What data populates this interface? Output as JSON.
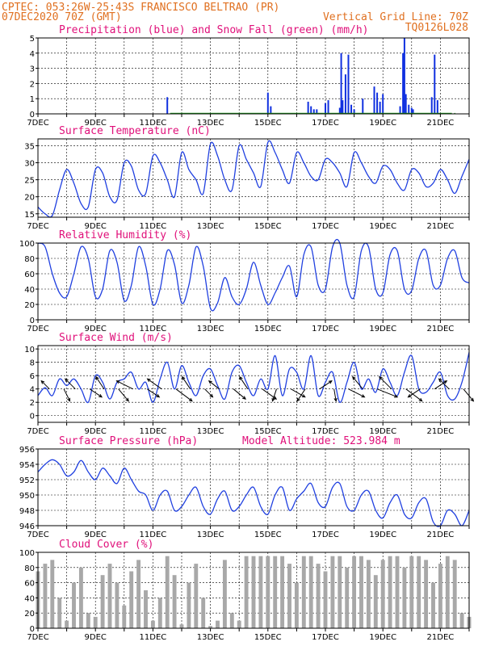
{
  "header": {
    "line1_left": "CPTEC:  053:26W-25:43S  FRANCISCO BELTRAO (PR)",
    "line2_left": "07DEC2020 70Z (GMT)",
    "line2_right": "Vertical Grid Line: 70Z",
    "line3_right": "TQ0126L028"
  },
  "colors": {
    "header": "#e07020",
    "panel_title": "#e0107a",
    "precip": "#1030e0",
    "snow": "#20a020",
    "line": "#2040e0",
    "arrow": "#000000",
    "cloud": "#a8a8a8"
  },
  "x_axis": {
    "start_day": 7,
    "end_day": 22,
    "tick_labels": [
      "7DEC",
      "9DEC",
      "11DEC",
      "13DEC",
      "15DEC",
      "17DEC",
      "19DEC",
      "21DEC"
    ]
  },
  "chart_data": [
    {
      "id": "precip",
      "type": "bar",
      "title": "Precipitation (blue) and Snow Fall (green) (mm/h)",
      "ylim": [
        0,
        5
      ],
      "yticks": [
        0,
        1,
        2,
        3,
        4,
        5
      ],
      "series": [
        {
          "name": "Precipitation",
          "x": [
            11.5,
            15.0,
            15.1,
            16.4,
            16.5,
            16.6,
            16.7,
            17.0,
            17.1,
            17.5,
            17.55,
            17.6,
            17.7,
            17.8,
            17.9,
            18.0,
            18.3,
            18.7,
            18.8,
            18.9,
            19.0,
            19.6,
            19.7,
            19.75,
            19.8,
            19.9,
            20.0,
            20.05,
            20.7,
            20.8,
            20.9
          ],
          "values": [
            1.1,
            1.4,
            0.5,
            0.8,
            0.5,
            0.3,
            0.3,
            0.7,
            0.9,
            0.4,
            4.0,
            0.9,
            2.6,
            3.9,
            0.6,
            0.3,
            1.0,
            1.8,
            1.4,
            0.8,
            1.3,
            0.5,
            4.0,
            5.0,
            1.3,
            0.6,
            0.4,
            0.3,
            1.1,
            3.9,
            0.9
          ]
        }
      ],
      "snow_series": {
        "name": "Snow Fall",
        "x": [
          12.0,
          14.0,
          16.0,
          18.0,
          20.0,
          21.5
        ],
        "values": [
          0,
          0,
          0,
          0,
          0,
          0
        ]
      }
    },
    {
      "id": "temperature",
      "type": "line",
      "title": "Surface Temperature (nC)",
      "ylim": [
        14,
        37
      ],
      "yticks": [
        15,
        20,
        25,
        30,
        35
      ],
      "x": [
        7.0,
        7.25,
        7.5,
        7.75,
        8.0,
        8.25,
        8.5,
        8.75,
        9.0,
        9.25,
        9.5,
        9.75,
        10.0,
        10.25,
        10.5,
        10.75,
        11.0,
        11.25,
        11.5,
        11.75,
        12.0,
        12.25,
        12.5,
        12.75,
        13.0,
        13.25,
        13.5,
        13.75,
        14.0,
        14.25,
        14.5,
        14.75,
        15.0,
        15.25,
        15.5,
        15.75,
        16.0,
        16.25,
        16.5,
        16.75,
        17.0,
        17.25,
        17.5,
        17.75,
        18.0,
        18.25,
        18.5,
        18.75,
        19.0,
        19.25,
        19.5,
        19.75,
        20.0,
        20.25,
        20.5,
        20.75,
        21.0,
        21.25,
        21.5,
        21.75,
        22.0
      ],
      "values": [
        17,
        15,
        14.5,
        22,
        28,
        24,
        18,
        17,
        28,
        27,
        20,
        19,
        30,
        29,
        22,
        21,
        32,
        30,
        25,
        20,
        33,
        28,
        25,
        21,
        35.5,
        32,
        25,
        22,
        35,
        31,
        27,
        23,
        36,
        33,
        28,
        24,
        33,
        30,
        26,
        25,
        31,
        30,
        27,
        23,
        33,
        30,
        26,
        24,
        29,
        28,
        24,
        22,
        28,
        27,
        23,
        24,
        28,
        25,
        21,
        26,
        31
      ]
    },
    {
      "id": "humidity",
      "type": "line",
      "title": "Relative Humidity (%)",
      "ylim": [
        0,
        100
      ],
      "yticks": [
        0,
        20,
        40,
        60,
        80,
        100
      ],
      "x": [
        7.0,
        7.25,
        7.5,
        7.75,
        8.0,
        8.25,
        8.5,
        8.75,
        9.0,
        9.25,
        9.5,
        9.75,
        10.0,
        10.25,
        10.5,
        10.75,
        11.0,
        11.25,
        11.5,
        11.75,
        12.0,
        12.25,
        12.5,
        12.75,
        13.0,
        13.25,
        13.5,
        13.75,
        14.0,
        14.25,
        14.5,
        14.75,
        15.0,
        15.25,
        15.5,
        15.75,
        16.0,
        16.25,
        16.5,
        16.75,
        17.0,
        17.25,
        17.5,
        17.75,
        18.0,
        18.25,
        18.5,
        18.75,
        19.0,
        19.25,
        19.5,
        19.75,
        20.0,
        20.25,
        20.5,
        20.75,
        21.0,
        21.25,
        21.5,
        21.75,
        22.0
      ],
      "values": [
        100,
        95,
        60,
        35,
        30,
        60,
        95,
        80,
        30,
        40,
        90,
        75,
        25,
        45,
        95,
        70,
        20,
        40,
        90,
        72,
        22,
        45,
        95,
        70,
        15,
        22,
        55,
        30,
        20,
        40,
        75,
        45,
        20,
        35,
        55,
        70,
        30,
        85,
        95,
        45,
        40,
        95,
        100,
        45,
        30,
        90,
        95,
        40,
        35,
        85,
        90,
        40,
        38,
        80,
        90,
        45,
        45,
        80,
        90,
        55,
        48
      ]
    },
    {
      "id": "wind",
      "type": "line",
      "title": "Surface Wind (m/s)",
      "ylim": [
        -1,
        10.5
      ],
      "yticks": [
        0,
        2,
        4,
        6,
        8,
        10
      ],
      "x": [
        7.0,
        7.25,
        7.5,
        7.75,
        8.0,
        8.25,
        8.5,
        8.75,
        9.0,
        9.25,
        9.5,
        9.75,
        10.0,
        10.25,
        10.5,
        10.75,
        11.0,
        11.25,
        11.5,
        11.75,
        12.0,
        12.25,
        12.5,
        12.75,
        13.0,
        13.25,
        13.5,
        13.75,
        14.0,
        14.25,
        14.5,
        14.75,
        15.0,
        15.25,
        15.5,
        15.75,
        16.0,
        16.25,
        16.5,
        16.75,
        17.0,
        17.25,
        17.5,
        17.75,
        18.0,
        18.25,
        18.5,
        18.75,
        19.0,
        19.25,
        19.5,
        19.75,
        20.0,
        20.25,
        20.5,
        20.75,
        21.0,
        21.25,
        21.5,
        21.75,
        22.0
      ],
      "values": [
        3,
        4.2,
        3,
        5.5,
        4.5,
        5.5,
        4,
        2,
        6,
        5,
        2.5,
        5,
        5.5,
        6.5,
        4,
        5,
        2,
        5.5,
        8,
        4,
        7.5,
        5,
        3,
        6,
        7,
        4.5,
        2.5,
        6.5,
        7.5,
        5,
        3,
        5.5,
        4,
        9,
        3,
        7,
        6.5,
        4,
        9,
        3,
        5,
        6.5,
        2,
        5,
        8,
        4,
        5.5,
        3.5,
        7,
        5,
        3,
        6.5,
        9,
        4,
        3.5,
        5,
        6.5,
        3,
        2.5,
        5,
        9.5
      ],
      "arrows": {
        "x": [
          7.4,
          7.9,
          8.3,
          8.8,
          9.3,
          9.8,
          10.3,
          10.8,
          11.3,
          11.8,
          12.3,
          12.8,
          13.3,
          13.8,
          14.3,
          14.8,
          15.3,
          15.8,
          16.3,
          16.8,
          17.3,
          17.8,
          18.3,
          18.8,
          19.3,
          19.8,
          20.3,
          20.8,
          21.3,
          21.8
        ],
        "u": [
          -2,
          1.5,
          -2.5,
          3,
          -2,
          2.5,
          -4,
          3,
          -3.5,
          4,
          -2,
          2,
          -2.5,
          3,
          -2,
          3.5,
          -1,
          3.5,
          -2,
          3,
          0.5,
          4,
          -2.5,
          5,
          -3,
          4,
          -3,
          3,
          -2.5,
          2.5
        ],
        "v": [
          2,
          -3,
          2.5,
          -2,
          3,
          -3,
          2,
          -2,
          2.5,
          -3,
          3,
          -2,
          2,
          -2.5,
          3,
          -2.5,
          -3,
          -2,
          -3,
          2,
          -3,
          -2,
          3,
          -2,
          3,
          -3,
          -2,
          2,
          2.5,
          -3
        ]
      }
    },
    {
      "id": "pressure",
      "type": "line",
      "title": "Surface Pressure (hPa)",
      "annotation": "Model Altitude: 523.984 m",
      "ylim": [
        946,
        956
      ],
      "yticks": [
        946,
        948,
        950,
        952,
        954,
        956
      ],
      "x": [
        7.0,
        7.25,
        7.5,
        7.75,
        8.0,
        8.25,
        8.5,
        8.75,
        9.0,
        9.25,
        9.5,
        9.75,
        10.0,
        10.25,
        10.5,
        10.75,
        11.0,
        11.25,
        11.5,
        11.75,
        12.0,
        12.25,
        12.5,
        12.75,
        13.0,
        13.25,
        13.5,
        13.75,
        14.0,
        14.25,
        14.5,
        14.75,
        15.0,
        15.25,
        15.5,
        15.75,
        16.0,
        16.25,
        16.5,
        16.75,
        17.0,
        17.25,
        17.5,
        17.75,
        18.0,
        18.25,
        18.5,
        18.75,
        19.0,
        19.25,
        19.5,
        19.75,
        20.0,
        20.25,
        20.5,
        20.75,
        21.0,
        21.25,
        21.5,
        21.75,
        22.0
      ],
      "values": [
        953,
        954,
        954.6,
        954,
        952.5,
        953,
        954.5,
        953,
        952,
        953.5,
        952.5,
        951.5,
        953.5,
        952,
        950.5,
        950,
        948,
        950,
        950.5,
        948,
        948.5,
        950,
        951,
        948.5,
        947.5,
        949.5,
        950.5,
        948,
        948.5,
        950,
        951,
        948.5,
        947.5,
        950,
        951,
        948,
        949.5,
        950.5,
        951.5,
        949,
        948.5,
        951,
        951.5,
        948.5,
        948,
        950,
        950.5,
        948,
        947,
        949,
        950,
        947.5,
        947,
        949,
        949.5,
        946.5,
        946,
        948,
        947.5,
        946,
        948
      ]
    },
    {
      "id": "cloud",
      "type": "bar",
      "title": "Cloud Cover (%)",
      "ylim": [
        0,
        100
      ],
      "yticks": [
        0,
        20,
        40,
        60,
        80,
        100
      ],
      "x": [
        7.0,
        7.25,
        7.5,
        7.75,
        8.0,
        8.25,
        8.5,
        8.75,
        9.0,
        9.25,
        9.5,
        9.75,
        10.0,
        10.25,
        10.5,
        10.75,
        11.0,
        11.25,
        11.5,
        11.75,
        12.0,
        12.25,
        12.5,
        12.75,
        13.0,
        13.25,
        13.5,
        13.75,
        14.0,
        14.25,
        14.5,
        14.75,
        15.0,
        15.25,
        15.5,
        15.75,
        16.0,
        16.25,
        16.5,
        16.75,
        17.0,
        17.25,
        17.5,
        17.75,
        18.0,
        18.25,
        18.5,
        18.75,
        19.0,
        19.25,
        19.5,
        19.75,
        20.0,
        20.25,
        20.5,
        20.75,
        21.0,
        21.25,
        21.5,
        21.75,
        22.0
      ],
      "values": [
        75,
        85,
        90,
        40,
        10,
        60,
        80,
        20,
        15,
        70,
        85,
        60,
        30,
        75,
        90,
        50,
        10,
        40,
        95,
        70,
        5,
        60,
        85,
        40,
        3,
        10,
        90,
        20,
        10,
        95,
        95,
        95,
        95,
        95,
        95,
        85,
        60,
        95,
        95,
        85,
        75,
        95,
        95,
        80,
        95,
        95,
        90,
        70,
        90,
        95,
        95,
        80,
        95,
        95,
        90,
        60,
        85,
        95,
        90,
        20,
        15
      ]
    }
  ]
}
